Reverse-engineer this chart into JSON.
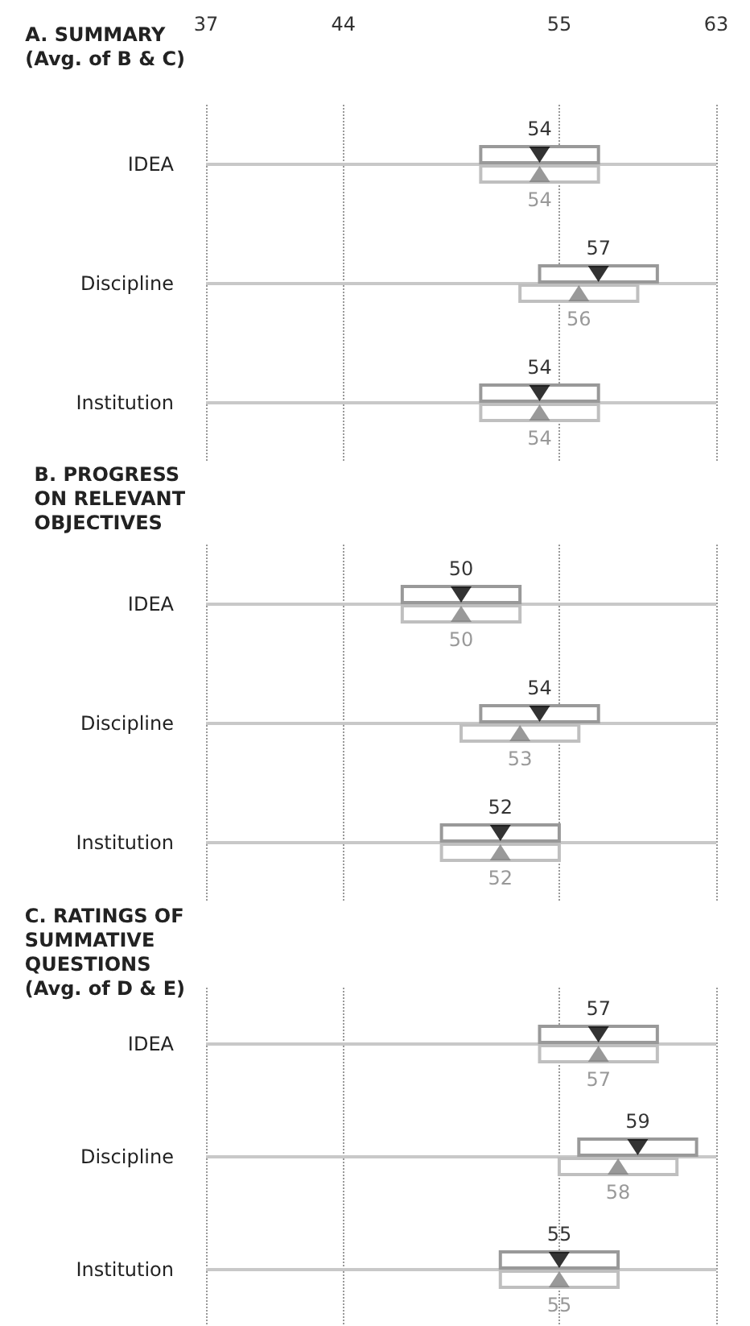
{
  "chart_data": [
    {
      "type": "bar",
      "orientation": "horizontal",
      "title": "A. SUMMARY\n(Avg. of B & C)",
      "categories": [
        "IDEA",
        "Discipline",
        "Institution"
      ],
      "xlim": [
        37,
        63
      ],
      "xticks": [
        37,
        44,
        55,
        63
      ],
      "grid": true,
      "marker": "triangle",
      "series": [
        {
          "color": "#999999",
          "base": [
            51,
            54,
            51
          ],
          "values": [
            6,
            6,
            6
          ]
        },
        {
          "color": "#bfbfbf",
          "base": [
            51,
            53,
            51
          ],
          "values": [
            6,
            6,
            6
          ]
        },
        {
          "type": "scatter",
          "color": "#000000",
          "values": [
            54,
            57,
            54
          ],
          "value_labels": [
            "54",
            "57",
            "54"
          ]
        },
        {
          "type": "scatter",
          "color": "#7f7f7f",
          "values": [
            54,
            56,
            54
          ],
          "value_labels": [
            "54",
            "56",
            "54"
          ]
        }
      ]
    },
    {
      "type": "bar",
      "orientation": "horizontal",
      "title": "B. PROGRESS\nON RELEVANT\nOBJECTIVES",
      "categories": [
        "IDEA",
        "Discipline",
        "Institution"
      ],
      "xlim": [
        37,
        63
      ],
      "xticks": [
        37,
        44,
        55,
        63
      ],
      "tick_labels": "y",
      "grid": true,
      "marker": "triangle",
      "series": [
        {
          "color": "#999999",
          "base": [
            47,
            51,
            49
          ],
          "values": [
            6,
            6,
            6
          ]
        },
        {
          "color": "#bfbfbf",
          "base": [
            47,
            50,
            49
          ],
          "values": [
            6,
            6,
            6
          ]
        },
        {
          "type": "scatter",
          "color": "#000000",
          "values": [
            50,
            54,
            52
          ],
          "value_labels": [
            "50",
            "54",
            "52"
          ]
        },
        {
          "type": "scatter",
          "color": "#7f7f7f",
          "values": [
            50,
            53,
            52
          ],
          "value_labels": [
            "50",
            "53",
            "52"
          ]
        }
      ]
    },
    {
      "type": "bar",
      "orientation": "horizontal",
      "title": "C. RATINGS OF\nSUMMATIVE\nQUESTIONS\n(Avg. of D & E)",
      "categories": [
        "IDEA",
        "Discipline",
        "Institution"
      ],
      "xlim": [
        37,
        63
      ],
      "xticks": [
        37,
        44,
        55,
        63
      ],
      "tick_labels": "y",
      "grid": true,
      "marker": "triangle",
      "series": [
        {
          "color": "#999999",
          "base": [
            54,
            56,
            52
          ],
          "values": [
            6,
            6,
            6
          ]
        },
        {
          "color": "#bfbfbf",
          "base": [
            54,
            55,
            52
          ],
          "values": [
            6,
            6,
            6
          ]
        },
        {
          "type": "scatter",
          "color": "#000000",
          "values": [
            57,
            59,
            55
          ],
          "value_labels": [
            "57",
            "59",
            "55"
          ]
        },
        {
          "type": "scatter",
          "color": "#7f7f7f",
          "values": [
            57,
            58,
            55
          ],
          "value_labels": [
            "57",
            "58",
            "55"
          ]
        }
      ]
    }
  ]
}
